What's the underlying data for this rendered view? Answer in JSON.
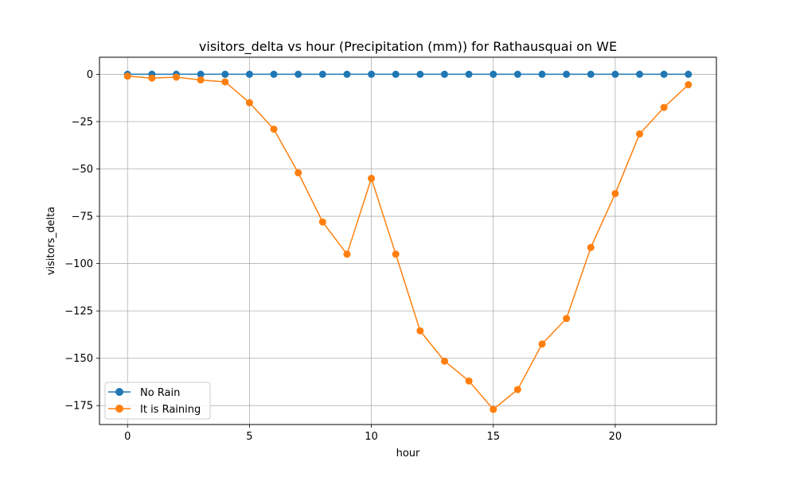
{
  "chart_data": {
    "type": "line",
    "title": "visitors_delta vs hour (Precipitation (mm)) for Rathausquai on WE",
    "xlabel": "hour",
    "ylabel": "visitors_delta",
    "xlim": [
      -1.15,
      24.15
    ],
    "ylim": [
      -185,
      9
    ],
    "xticks": [
      0,
      5,
      10,
      15,
      20
    ],
    "yticks": [
      0,
      -25,
      -50,
      -75,
      -100,
      -125,
      -150,
      -175
    ],
    "grid": true,
    "legend_position": "lower-left",
    "x": [
      0,
      1,
      2,
      3,
      4,
      5,
      6,
      7,
      8,
      9,
      10,
      11,
      12,
      13,
      14,
      15,
      16,
      17,
      18,
      19,
      20,
      21,
      22,
      23
    ],
    "series": [
      {
        "name": "No Rain",
        "color": "#1f77b4",
        "values": [
          0,
          0,
          0,
          0,
          0,
          0,
          0,
          0,
          0,
          0,
          0,
          0,
          0,
          0,
          0,
          0,
          0,
          0,
          0,
          0,
          0,
          0,
          0,
          0
        ]
      },
      {
        "name": "It is Raining",
        "color": "#ff7f0e",
        "values": [
          -1,
          -2,
          -1.5,
          -3,
          -4,
          -15,
          -29,
          -52,
          -78,
          -95,
          -55,
          -95,
          -135.5,
          -151.5,
          -162,
          -177,
          -166.5,
          -142.5,
          -129,
          -91.5,
          -63,
          -31.5,
          -17.5,
          -5.5
        ]
      }
    ]
  }
}
